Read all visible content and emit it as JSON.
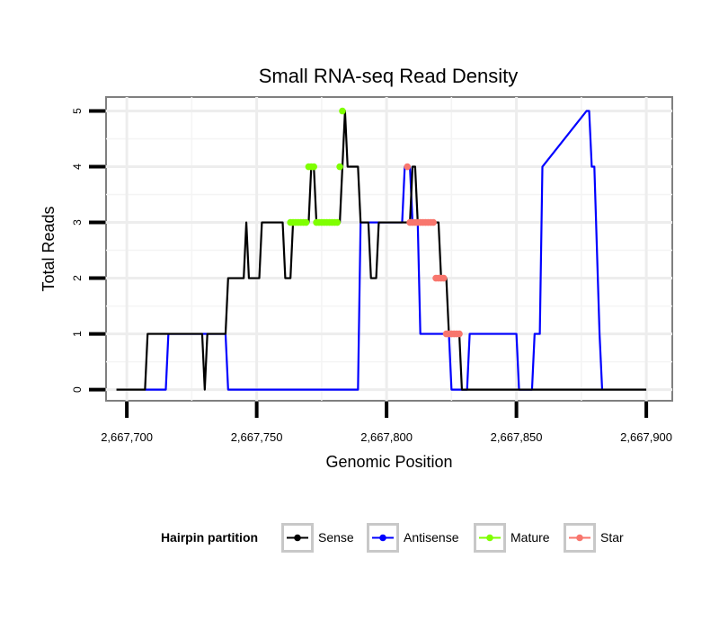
{
  "chart_data": {
    "type": "line",
    "title": "Small RNA-seq Read Density",
    "xlabel": "Genomic Position",
    "ylabel": "Total Reads",
    "xlim": [
      2667692,
      2667910
    ],
    "ylim": [
      -0.2,
      5.25
    ],
    "x_ticks": [
      2667700,
      2667750,
      2667800,
      2667850,
      2667900
    ],
    "x_tick_labels": [
      "2,667,700",
      "2,667,750",
      "2,667,800",
      "2,667,850",
      "2,667,900"
    ],
    "y_ticks": [
      0,
      1,
      2,
      3,
      4,
      5
    ],
    "y_tick_labels": [
      "0",
      "1",
      "2",
      "3",
      "4",
      "5"
    ],
    "grid": true,
    "legend_position": "bottom",
    "legend_title": "Hairpin partition",
    "series": [
      {
        "name": "Sense",
        "color": "#000000",
        "style": "line",
        "x": [
          2667696,
          2667707,
          2667708,
          2667729,
          2667730,
          2667731,
          2667738,
          2667739,
          2667745,
          2667746,
          2667747,
          2667751,
          2667752,
          2667756,
          2667757,
          2667760,
          2667761,
          2667763,
          2667764,
          2667770,
          2667771,
          2667772,
          2667773,
          2667782,
          2667783,
          2667784,
          2667785,
          2667789,
          2667790,
          2667793,
          2667794,
          2667796,
          2667797,
          2667809,
          2667810,
          2667811,
          2667812,
          2667820,
          2667821,
          2667823,
          2667824,
          2667828,
          2667829,
          2667830,
          2667900
        ],
        "values": [
          0,
          0,
          1,
          1,
          0,
          1,
          1,
          2,
          2,
          3,
          2,
          2,
          3,
          3,
          3,
          3,
          2,
          2,
          3,
          3,
          4,
          4,
          3,
          3,
          4,
          5,
          4,
          4,
          3,
          3,
          2,
          2,
          3,
          3,
          4,
          4,
          3,
          3,
          2,
          2,
          1,
          1,
          0,
          0,
          0
        ]
      },
      {
        "name": "Antisense",
        "color": "#0000ff",
        "style": "line",
        "x": [
          2667707,
          2667715,
          2667716,
          2667738,
          2667739,
          2667789,
          2667790,
          2667806,
          2667807,
          2667809,
          2667810,
          2667812,
          2667813,
          2667824,
          2667825,
          2667831,
          2667832,
          2667850,
          2667851,
          2667856,
          2667857,
          2667859,
          2667860,
          2667877,
          2667878,
          2667879,
          2667880,
          2667882,
          2667883
        ],
        "values": [
          0,
          0,
          1,
          1,
          0,
          0,
          3,
          3,
          4,
          4,
          3,
          3,
          1,
          1,
          0,
          0,
          1,
          1,
          0,
          0,
          1,
          1,
          4,
          5,
          5,
          4,
          4,
          1,
          0
        ]
      },
      {
        "name": "Mature",
        "color": "#7fff00",
        "style": "points",
        "x": [
          2667763,
          2667764,
          2667765,
          2667766,
          2667767,
          2667768,
          2667769,
          2667770,
          2667771,
          2667772,
          2667773,
          2667774,
          2667775,
          2667776,
          2667777,
          2667778,
          2667779,
          2667780,
          2667781,
          2667782,
          2667783
        ],
        "values": [
          3,
          3,
          3,
          3,
          3,
          3,
          3,
          4,
          4,
          4,
          3,
          3,
          3,
          3,
          3,
          3,
          3,
          3,
          3,
          4,
          5
        ]
      },
      {
        "name": "Star",
        "color": "#f8766d",
        "style": "points",
        "x": [
          2667808,
          2667809,
          2667810,
          2667811,
          2667812,
          2667813,
          2667814,
          2667815,
          2667816,
          2667817,
          2667818,
          2667819,
          2667820,
          2667821,
          2667822,
          2667823,
          2667824,
          2667825,
          2667826,
          2667827,
          2667828
        ],
        "values": [
          4,
          3,
          3,
          3,
          3,
          3,
          3,
          3,
          3,
          3,
          3,
          2,
          2,
          2,
          2,
          1,
          1,
          1,
          1,
          1,
          1
        ]
      }
    ]
  }
}
